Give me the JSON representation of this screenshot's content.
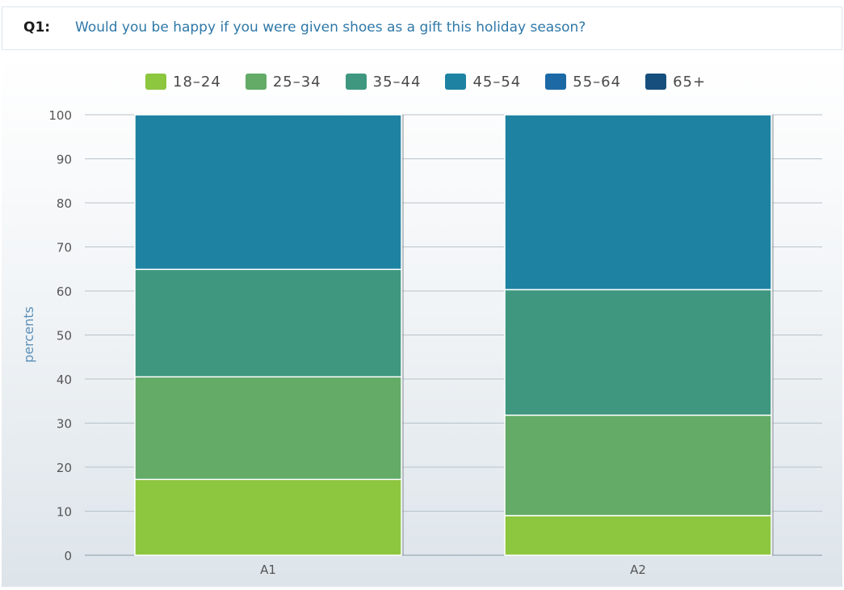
{
  "question": {
    "label": "Q1:",
    "text": "Would you be happy if you were given shoes as a gift this holiday season?"
  },
  "chart_data": {
    "type": "bar",
    "stacked": true,
    "categories": [
      "A1",
      "A2"
    ],
    "series": [
      {
        "name": "18-24",
        "color": "#8dc63f",
        "values": [
          17.2,
          9.0
        ]
      },
      {
        "name": "25-34",
        "color": "#63ab67",
        "values": [
          23.3,
          22.8
        ]
      },
      {
        "name": "35-44",
        "color": "#3f9780",
        "values": [
          24.4,
          28.5
        ]
      },
      {
        "name": "45-54",
        "color": "#1e83a2",
        "values": [
          35.1,
          39.7
        ]
      },
      {
        "name": "55-64",
        "color": "#1c69a5",
        "values": [
          0,
          0
        ]
      },
      {
        "name": "65+",
        "color": "#164f7d",
        "values": [
          0,
          0
        ]
      }
    ],
    "ylabel": "percents",
    "xlabel": "",
    "ylim": [
      0,
      100
    ],
    "yticks": [
      0,
      10,
      20,
      30,
      40,
      50,
      60,
      70,
      80,
      90,
      100
    ],
    "grid": true,
    "legend_position": "top"
  }
}
